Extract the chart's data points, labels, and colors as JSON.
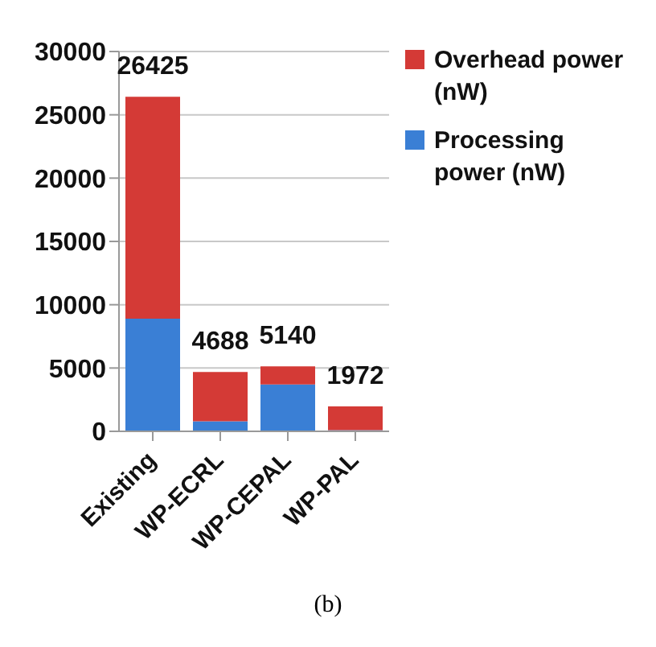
{
  "chart_data": {
    "type": "bar",
    "stacked": true,
    "categories": [
      "Existing",
      "WP-ECRL",
      "WP-CEPAL",
      "WP-PAL"
    ],
    "series": [
      {
        "name": "Processing power (nW)",
        "color": "#3a7fd5",
        "values": [
          8900,
          800,
          3700,
          100
        ]
      },
      {
        "name": "Overhead power (nW)",
        "color": "#d43a36",
        "values": [
          17525,
          3888,
          1440,
          1872
        ]
      }
    ],
    "totals": [
      "26425",
      "4688",
      "5140",
      "1972"
    ],
    "ylim": [
      0,
      30000
    ],
    "yticks": [
      0,
      5000,
      10000,
      15000,
      20000,
      25000,
      30000
    ],
    "grid": "y",
    "legend": "top right",
    "annotations": [
      "(b)"
    ]
  }
}
